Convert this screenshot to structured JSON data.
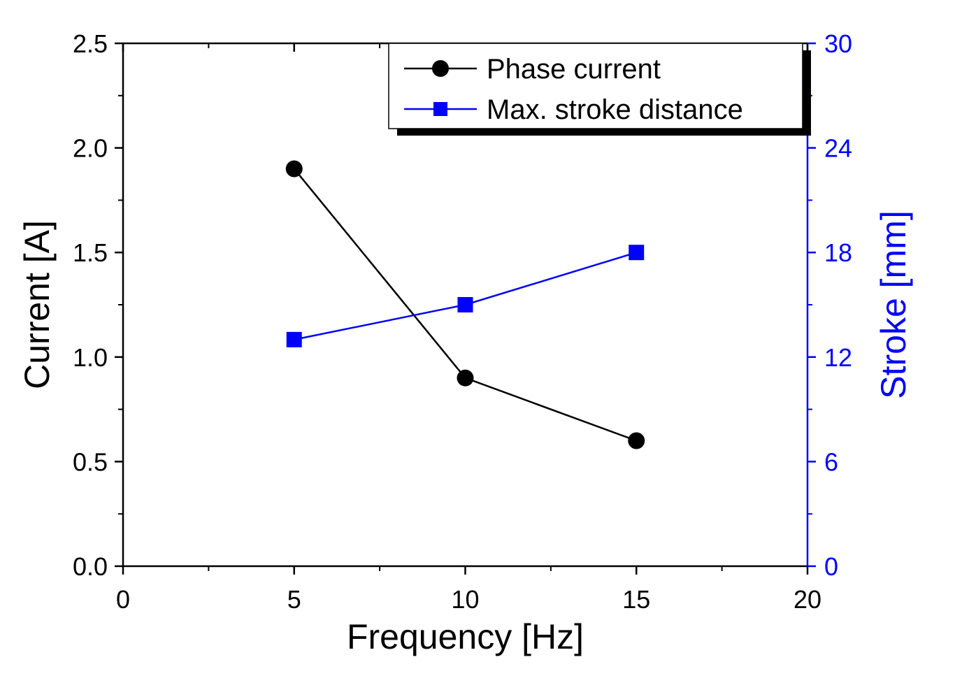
{
  "chart_data": {
    "type": "line",
    "x": [
      5,
      10,
      15
    ],
    "xlabel": "Frequency [Hz]",
    "xlim": [
      0,
      20
    ],
    "xticks": [
      0,
      5,
      10,
      15,
      20
    ],
    "xtick_labels": [
      "0",
      "5",
      "10",
      "15",
      "20"
    ],
    "ylabel": "Current [A]",
    "ylim": [
      0,
      2.5
    ],
    "yticks": [
      0,
      0.5,
      1.0,
      1.5,
      2.0,
      2.5
    ],
    "ytick_labels": [
      "0.0",
      "0.5",
      "1.0",
      "1.5",
      "2.0",
      "2.5"
    ],
    "y2label": "Stroke [mm]",
    "y2lim": [
      0,
      30
    ],
    "y2ticks": [
      0,
      6,
      12,
      18,
      24,
      30
    ],
    "y2tick_labels": [
      "0",
      "6",
      "12",
      "18",
      "24",
      "30"
    ],
    "legend_position": "top-right",
    "grid": false,
    "series": [
      {
        "name": "Phase current",
        "axis": "left",
        "marker": "circle",
        "color": "#000000",
        "values": [
          1.9,
          0.9,
          0.6
        ]
      },
      {
        "name": "Max. stroke distance",
        "axis": "right",
        "marker": "square",
        "color": "#0000ff",
        "values": [
          13,
          15,
          18
        ]
      }
    ]
  }
}
